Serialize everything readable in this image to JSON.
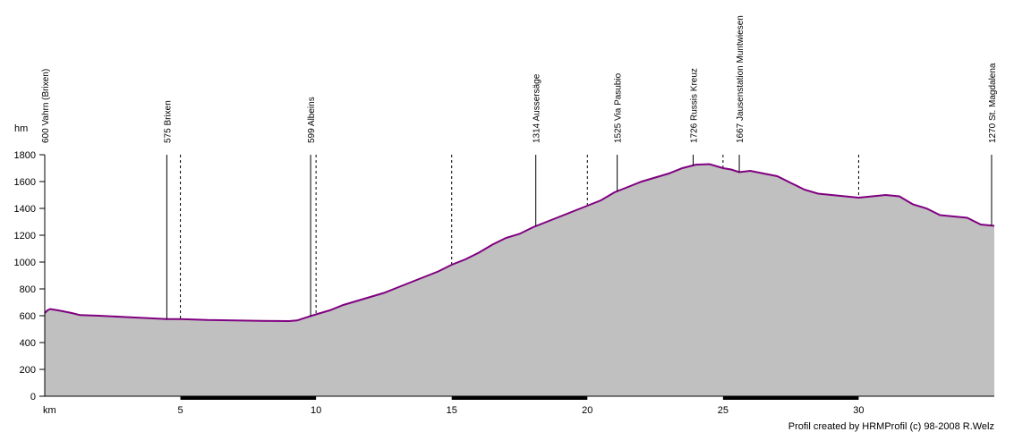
{
  "chart_data": {
    "type": "area",
    "ylabel": "hm",
    "xlabel": "km",
    "xlim": [
      0,
      35
    ],
    "ylim": [
      0,
      1800
    ],
    "yticks": [
      0,
      200,
      400,
      600,
      800,
      1000,
      1200,
      1400,
      1600,
      1800
    ],
    "xticks": [
      5,
      10,
      15,
      20,
      25,
      30
    ],
    "grid": "dashed vertical lines at x ticks and waypoints",
    "colors": {
      "fill": "#c0c0c0",
      "line": "#800080",
      "waypoint": "#000000",
      "km_bar": "#000000"
    },
    "x": [
      0,
      0.1,
      0.2,
      0.5,
      1.0,
      1.3,
      2.0,
      3.0,
      4.0,
      4.5,
      5.0,
      5.5,
      6.0,
      7.0,
      8.0,
      9.0,
      9.3,
      9.6,
      10.0,
      10.5,
      11.0,
      11.5,
      12.0,
      12.5,
      13.0,
      13.5,
      14.0,
      14.5,
      15.0,
      15.5,
      16.0,
      16.5,
      17.0,
      17.5,
      18.0,
      18.5,
      19.0,
      19.5,
      20.0,
      20.5,
      21.0,
      21.5,
      22.0,
      22.5,
      23.0,
      23.5,
      24.0,
      24.5,
      25.0,
      25.3,
      25.6,
      26.0,
      26.5,
      27.0,
      27.5,
      28.0,
      28.5,
      29.0,
      29.5,
      30.0,
      30.5,
      31.0,
      31.5,
      32.0,
      32.5,
      33.0,
      33.5,
      34.0,
      34.5,
      35.0
    ],
    "y": [
      620,
      640,
      650,
      640,
      620,
      605,
      600,
      590,
      580,
      575,
      575,
      572,
      568,
      565,
      562,
      560,
      565,
      585,
      610,
      640,
      680,
      710,
      740,
      770,
      810,
      850,
      890,
      930,
      980,
      1020,
      1070,
      1130,
      1180,
      1210,
      1260,
      1300,
      1340,
      1380,
      1420,
      1460,
      1520,
      1560,
      1600,
      1630,
      1660,
      1700,
      1726,
      1730,
      1700,
      1690,
      1670,
      1680,
      1660,
      1640,
      1590,
      1540,
      1510,
      1500,
      1490,
      1480,
      1490,
      1500,
      1490,
      1430,
      1400,
      1350,
      1340,
      1330,
      1280,
      1270
    ],
    "waypoints": [
      {
        "km": 0,
        "label": "600  Vahrn (Brixen)"
      },
      {
        "km": 4.5,
        "label": "575  Brixen"
      },
      {
        "km": 9.8,
        "label": "599  Albeins"
      },
      {
        "km": 18.1,
        "label": "1314  Aussersäge"
      },
      {
        "km": 21.1,
        "label": "1525  Via Pasubio"
      },
      {
        "km": 23.9,
        "label": "1726  Russis Kreuz"
      },
      {
        "km": 25.6,
        "label": "1667  Jausenstation Muntwiesen"
      },
      {
        "km": 34.9,
        "label": "1270  St. Magdalena"
      }
    ]
  },
  "credit": "Profil created by HRMProfil (c) 98-2008 R.Welz"
}
